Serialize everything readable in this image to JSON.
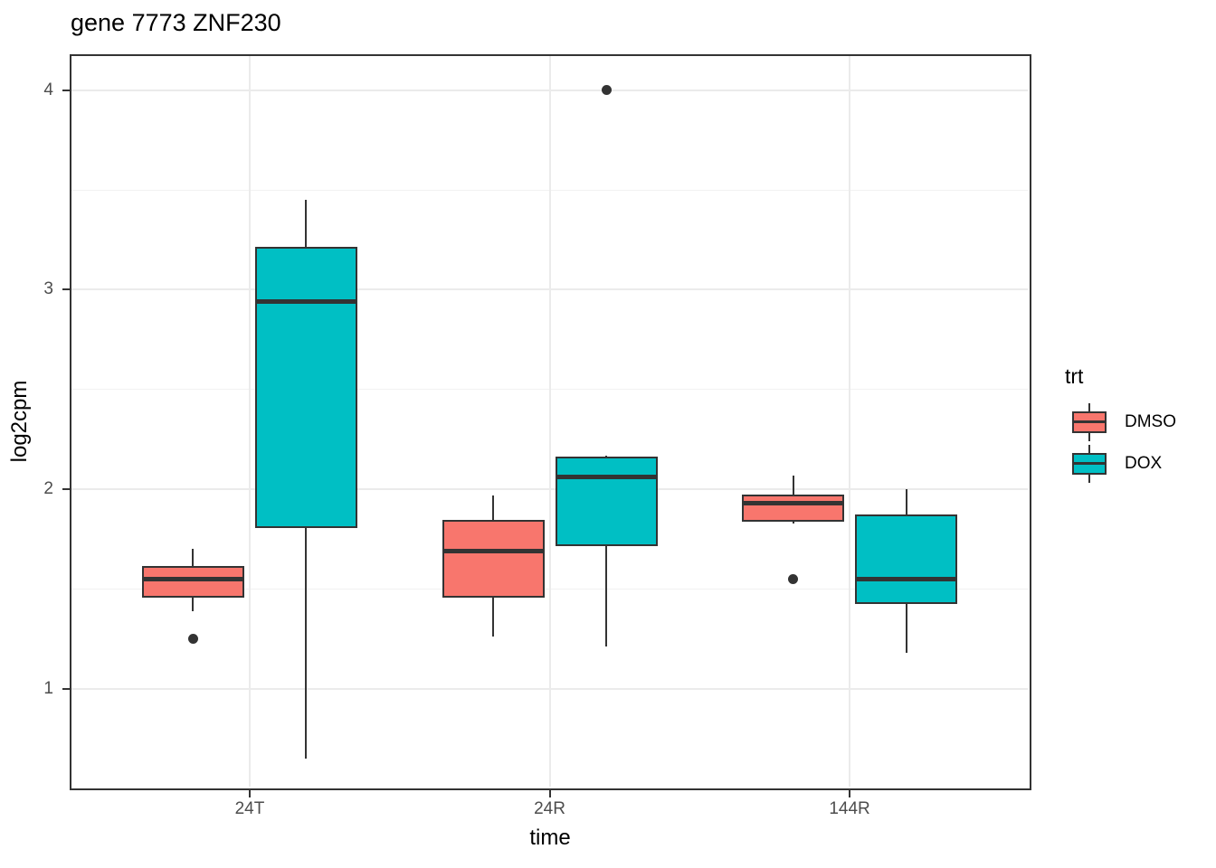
{
  "title": "gene 7773 ZNF230",
  "axes": {
    "x_label": "time",
    "y_label": "log2cpm",
    "y_ticks": [
      1,
      2,
      3,
      4
    ],
    "y_minor_ticks": [
      1.5,
      2.5,
      3.5
    ],
    "x_categories": [
      "24T",
      "24R",
      "144R"
    ]
  },
  "legend": {
    "title": "trt",
    "items": [
      {
        "label": "DMSO",
        "color": "#F8766D"
      },
      {
        "label": "DOX",
        "color": "#00BFC4"
      }
    ]
  },
  "colors": {
    "box_outline": "#333333",
    "grid_major": "#EBEBEB",
    "grid_minor": "#F2F2F2",
    "axis_text": "#4D4D4D",
    "panel_border": "#333333",
    "background": "#FFFFFF",
    "dmso": "#F8766D",
    "dox": "#00BFC4"
  },
  "chart_data": {
    "type": "boxplot",
    "title": "gene 7773 ZNF230",
    "xlabel": "time",
    "ylabel": "log2cpm",
    "ylim": [
      0.5,
      4.18
    ],
    "grid": true,
    "legend_position": "right",
    "categories": [
      "24T",
      "24R",
      "144R"
    ],
    "series": [
      {
        "name": "DMSO",
        "color": "#F8766D",
        "boxes": [
          {
            "category": "24T",
            "whisker_low": 1.39,
            "q1": 1.46,
            "median": 1.55,
            "q3": 1.61,
            "whisker_high": 1.7,
            "outliers": [
              1.25
            ]
          },
          {
            "category": "24R",
            "whisker_low": 1.26,
            "q1": 1.46,
            "median": 1.69,
            "q3": 1.84,
            "whisker_high": 1.97,
            "outliers": []
          },
          {
            "category": "144R",
            "whisker_low": 1.83,
            "q1": 1.84,
            "median": 1.93,
            "q3": 1.97,
            "whisker_high": 2.07,
            "outliers": [
              1.55
            ]
          }
        ]
      },
      {
        "name": "DOX",
        "color": "#00BFC4",
        "boxes": [
          {
            "category": "24T",
            "whisker_low": 0.65,
            "q1": 1.81,
            "median": 2.94,
            "q3": 3.21,
            "whisker_high": 3.45,
            "outliers": []
          },
          {
            "category": "24R",
            "whisker_low": 1.21,
            "q1": 1.72,
            "median": 2.06,
            "q3": 2.16,
            "whisker_high": 2.17,
            "outliers": [
              4.0
            ]
          },
          {
            "category": "144R",
            "whisker_low": 1.18,
            "q1": 1.43,
            "median": 1.55,
            "q3": 1.87,
            "whisker_high": 2.0,
            "outliers": []
          }
        ]
      }
    ]
  }
}
